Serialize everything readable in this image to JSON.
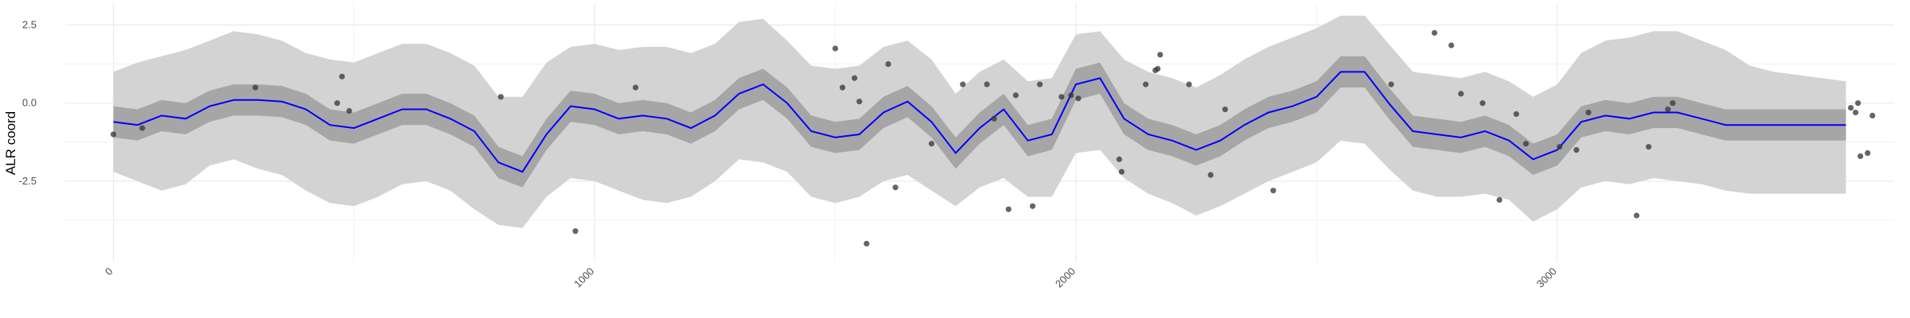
{
  "chart_data": {
    "type": "line",
    "title": "",
    "xlabel": "",
    "ylabel": "ALR coord",
    "xlim": [
      -100,
      3700
    ],
    "ylim": [
      -5.1,
      3.2
    ],
    "grid": true,
    "legend": "none",
    "x_ticks": [
      0,
      1000,
      2000,
      3000
    ],
    "x_tick_labels": [
      "0",
      "1000",
      "2000",
      "3000"
    ],
    "y_ticks": [
      2.5,
      0.0,
      -2.5
    ],
    "y_tick_labels": [
      "2.5",
      "0.0",
      "-2.5"
    ],
    "colors": {
      "mean_line": "#0000ff",
      "inner_band": "#a6a6a6",
      "outer_band": "#d3d3d3",
      "points": "#3a3a3a",
      "grid": "#ebebeb"
    },
    "series": [
      {
        "type": "line",
        "x": [
          0,
          50,
          100,
          150,
          200,
          250,
          300,
          350,
          400,
          450,
          500,
          550,
          600,
          650,
          700,
          750,
          800,
          850,
          900,
          950,
          1000,
          1050,
          1100,
          1150,
          1200,
          1250,
          1300,
          1350,
          1400,
          1450,
          1500,
          1550,
          1600,
          1650,
          1700,
          1750,
          1800,
          1850,
          1900,
          1950,
          2000,
          2050,
          2100,
          2150,
          2200,
          2250,
          2300,
          2350,
          2400,
          2450,
          2500,
          2550,
          2600,
          2650,
          2700,
          2750,
          2800,
          2850,
          2900,
          2950,
          3000,
          3050,
          3100,
          3150,
          3200,
          3250,
          3300,
          3350,
          3400,
          3450,
          3500,
          3550,
          3600
        ],
        "mean": [
          -0.6,
          -0.7,
          -0.4,
          -0.5,
          -0.1,
          0.1,
          0.1,
          0.05,
          -0.2,
          -0.7,
          -0.8,
          -0.5,
          -0.2,
          -0.2,
          -0.5,
          -0.9,
          -1.9,
          -2.2,
          -1.0,
          -0.1,
          -0.2,
          -0.5,
          -0.4,
          -0.5,
          -0.8,
          -0.4,
          0.3,
          0.6,
          0.0,
          -0.9,
          -1.1,
          -1.0,
          -0.3,
          0.05,
          -0.6,
          -1.6,
          -0.8,
          -0.2,
          -1.2,
          -1.0,
          0.6,
          0.8,
          -0.5,
          -1.0,
          -1.2,
          -1.5,
          -1.2,
          -0.7,
          -0.3,
          -0.1,
          0.2,
          1.0,
          1.0,
          0.0,
          -0.9,
          -1.0,
          -1.1,
          -0.9,
          -1.2,
          -1.8,
          -1.5,
          -0.6,
          -0.4,
          -0.5,
          -0.3,
          -0.3,
          -0.5,
          -0.7,
          -0.7,
          -0.7,
          -0.7,
          -0.7,
          -0.7
        ],
        "inner_lower": [
          -1.1,
          -1.2,
          -0.9,
          -1.0,
          -0.6,
          -0.4,
          -0.4,
          -0.45,
          -0.7,
          -1.2,
          -1.3,
          -1.0,
          -0.7,
          -0.7,
          -1.0,
          -1.4,
          -2.4,
          -2.7,
          -1.5,
          -0.6,
          -0.7,
          -1.0,
          -0.9,
          -1.0,
          -1.3,
          -0.9,
          -0.2,
          0.1,
          -0.5,
          -1.4,
          -1.6,
          -1.5,
          -0.8,
          -0.45,
          -1.1,
          -2.1,
          -1.3,
          -0.7,
          -1.7,
          -1.5,
          0.1,
          0.3,
          -1.0,
          -1.5,
          -1.7,
          -2.0,
          -1.7,
          -1.2,
          -0.8,
          -0.6,
          -0.3,
          0.5,
          0.5,
          -0.5,
          -1.4,
          -1.5,
          -1.6,
          -1.4,
          -1.7,
          -2.3,
          -2.0,
          -1.1,
          -0.9,
          -1.0,
          -0.8,
          -0.8,
          -1.0,
          -1.2,
          -1.2,
          -1.2,
          -1.2,
          -1.2,
          -1.2
        ],
        "inner_upper": [
          -0.1,
          -0.2,
          0.1,
          0.0,
          0.4,
          0.6,
          0.6,
          0.55,
          0.3,
          -0.2,
          -0.3,
          0.0,
          0.3,
          0.3,
          0.0,
          -0.4,
          -1.4,
          -1.7,
          -0.5,
          0.4,
          0.3,
          0.0,
          0.1,
          0.0,
          -0.3,
          0.1,
          0.8,
          1.1,
          0.5,
          -0.4,
          -0.6,
          -0.5,
          0.2,
          0.55,
          -0.1,
          -1.1,
          -0.3,
          0.3,
          -0.7,
          -0.5,
          1.1,
          1.3,
          0.0,
          -0.5,
          -0.7,
          -1.0,
          -0.7,
          -0.2,
          0.2,
          0.4,
          0.7,
          1.5,
          1.5,
          0.5,
          -0.4,
          -0.5,
          -0.6,
          -0.4,
          -0.7,
          -1.3,
          -1.0,
          -0.1,
          0.1,
          0.0,
          0.2,
          0.2,
          0.0,
          -0.2,
          -0.2,
          -0.2,
          -0.2,
          -0.2,
          -0.2
        ],
        "outer_lower": [
          -2.2,
          -2.5,
          -2.8,
          -2.6,
          -2.0,
          -1.8,
          -2.1,
          -2.3,
          -2.8,
          -3.2,
          -3.3,
          -3.0,
          -2.6,
          -2.5,
          -2.8,
          -3.4,
          -3.9,
          -4.0,
          -3.0,
          -2.4,
          -2.5,
          -2.8,
          -3.1,
          -3.2,
          -3.0,
          -2.5,
          -1.8,
          -1.9,
          -2.2,
          -3.0,
          -3.2,
          -3.0,
          -2.5,
          -2.3,
          -2.8,
          -3.3,
          -2.7,
          -2.4,
          -3.0,
          -3.0,
          -1.6,
          -1.5,
          -2.4,
          -2.9,
          -3.2,
          -3.6,
          -3.3,
          -2.9,
          -2.5,
          -2.2,
          -1.9,
          -1.2,
          -1.3,
          -2.1,
          -2.8,
          -3.0,
          -3.0,
          -2.9,
          -3.1,
          -3.8,
          -3.4,
          -2.7,
          -2.5,
          -2.6,
          -2.4,
          -2.5,
          -2.6,
          -2.8,
          -2.9,
          -2.9,
          -2.9,
          -2.9,
          -2.9
        ],
        "outer_upper": [
          1.0,
          1.3,
          1.5,
          1.7,
          2.0,
          2.3,
          2.2,
          2.0,
          1.6,
          1.4,
          1.3,
          1.6,
          1.9,
          1.9,
          1.6,
          1.2,
          0.2,
          0.2,
          1.3,
          1.8,
          1.9,
          1.7,
          1.8,
          1.8,
          1.6,
          1.9,
          2.6,
          2.7,
          2.0,
          1.2,
          1.1,
          1.2,
          1.8,
          2.0,
          1.4,
          0.3,
          1.0,
          1.4,
          0.7,
          0.8,
          2.2,
          2.3,
          1.4,
          1.0,
          0.8,
          0.5,
          0.9,
          1.4,
          1.8,
          2.1,
          2.4,
          2.8,
          2.8,
          1.9,
          1.0,
          0.9,
          0.8,
          1.0,
          0.7,
          0.2,
          0.6,
          1.6,
          2.0,
          2.1,
          2.3,
          2.3,
          2.0,
          1.7,
          1.2,
          1.0,
          0.9,
          0.8,
          0.7
        ]
      },
      {
        "type": "scatter",
        "x": [
          0,
          60,
          295,
          465,
          475,
          490,
          805,
          960,
          1085,
          1500,
          1515,
          1540,
          1550,
          1565,
          1610,
          1625,
          1700,
          1765,
          1815,
          1830,
          1860,
          1875,
          1910,
          1925,
          1970,
          1990,
          2005,
          2090,
          2095,
          2145,
          2165,
          2170,
          2175,
          2235,
          2280,
          2310,
          2410,
          2655,
          2745,
          2780,
          2800,
          2845,
          2880,
          2915,
          2935,
          3005,
          3040,
          3065,
          3165,
          3190,
          3230,
          3240,
          3620,
          3630,
          3645,
          3610,
          3625,
          3655
        ],
        "y": [
          -1.0,
          -0.8,
          0.5,
          0.0,
          0.85,
          -0.25,
          0.2,
          -4.1,
          0.5,
          1.75,
          0.5,
          0.8,
          0.05,
          -4.5,
          1.25,
          -2.7,
          -1.3,
          0.6,
          0.6,
          -0.5,
          -3.4,
          0.25,
          -3.3,
          0.6,
          0.2,
          0.25,
          0.15,
          -1.8,
          -2.2,
          0.6,
          1.05,
          1.1,
          1.55,
          0.6,
          -2.3,
          -0.2,
          -2.8,
          0.6,
          2.25,
          1.85,
          0.3,
          0.0,
          -3.1,
          -0.35,
          -1.3,
          -1.4,
          -1.5,
          -0.3,
          -3.6,
          -1.4,
          -0.2,
          0.0,
          -0.3,
          -1.7,
          -1.6,
          -0.15,
          0.0,
          -0.4
        ]
      }
    ]
  }
}
